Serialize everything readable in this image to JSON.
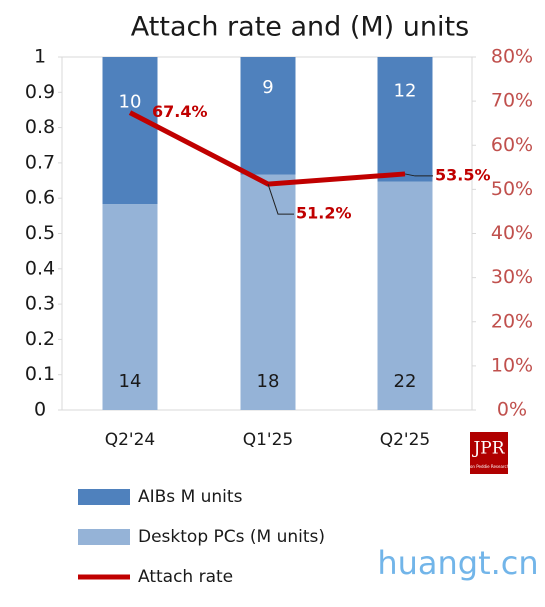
{
  "chart_data": {
    "type": "bar",
    "title": "Attach rate and (M) units",
    "categories": [
      "Q2'24",
      "Q1'25",
      "Q2'25"
    ],
    "stacked": "percent",
    "series": [
      {
        "name": "AIBs M units",
        "color": "#4f81bd",
        "values": [
          10,
          9,
          12
        ]
      },
      {
        "name": "Desktop PCs (M units)",
        "color": "#95b3d7",
        "values": [
          14,
          18,
          22
        ]
      },
      {
        "name": "Attach rate",
        "type": "line",
        "axis": "y2",
        "color": "#c00000",
        "values": [
          67.4,
          51.2,
          53.5
        ],
        "value_labels": [
          "67.4%",
          "51.2%",
          "53.5%"
        ]
      }
    ],
    "ylim": [
      0,
      1
    ],
    "yticks": [
      0,
      0.1,
      0.2,
      0.3,
      0.4,
      0.5,
      0.6,
      0.7,
      0.8,
      0.9,
      1
    ],
    "y2lim": [
      0,
      80
    ],
    "y2ticks": [
      {
        "value": 0,
        "label": "0%"
      },
      {
        "value": 10,
        "label": "10%"
      },
      {
        "value": 20,
        "label": "20%"
      },
      {
        "value": 30,
        "label": "30%"
      },
      {
        "value": 40,
        "label": "40%"
      },
      {
        "value": 50,
        "label": "50%"
      },
      {
        "value": 60,
        "label": "60%"
      },
      {
        "value": 70,
        "label": "70%"
      },
      {
        "value": 80,
        "label": "80%"
      }
    ],
    "grid": false
  },
  "logo": {
    "text": "JPR",
    "subtext": "Jon Peddie Research"
  },
  "watermark": "huangt.cn"
}
